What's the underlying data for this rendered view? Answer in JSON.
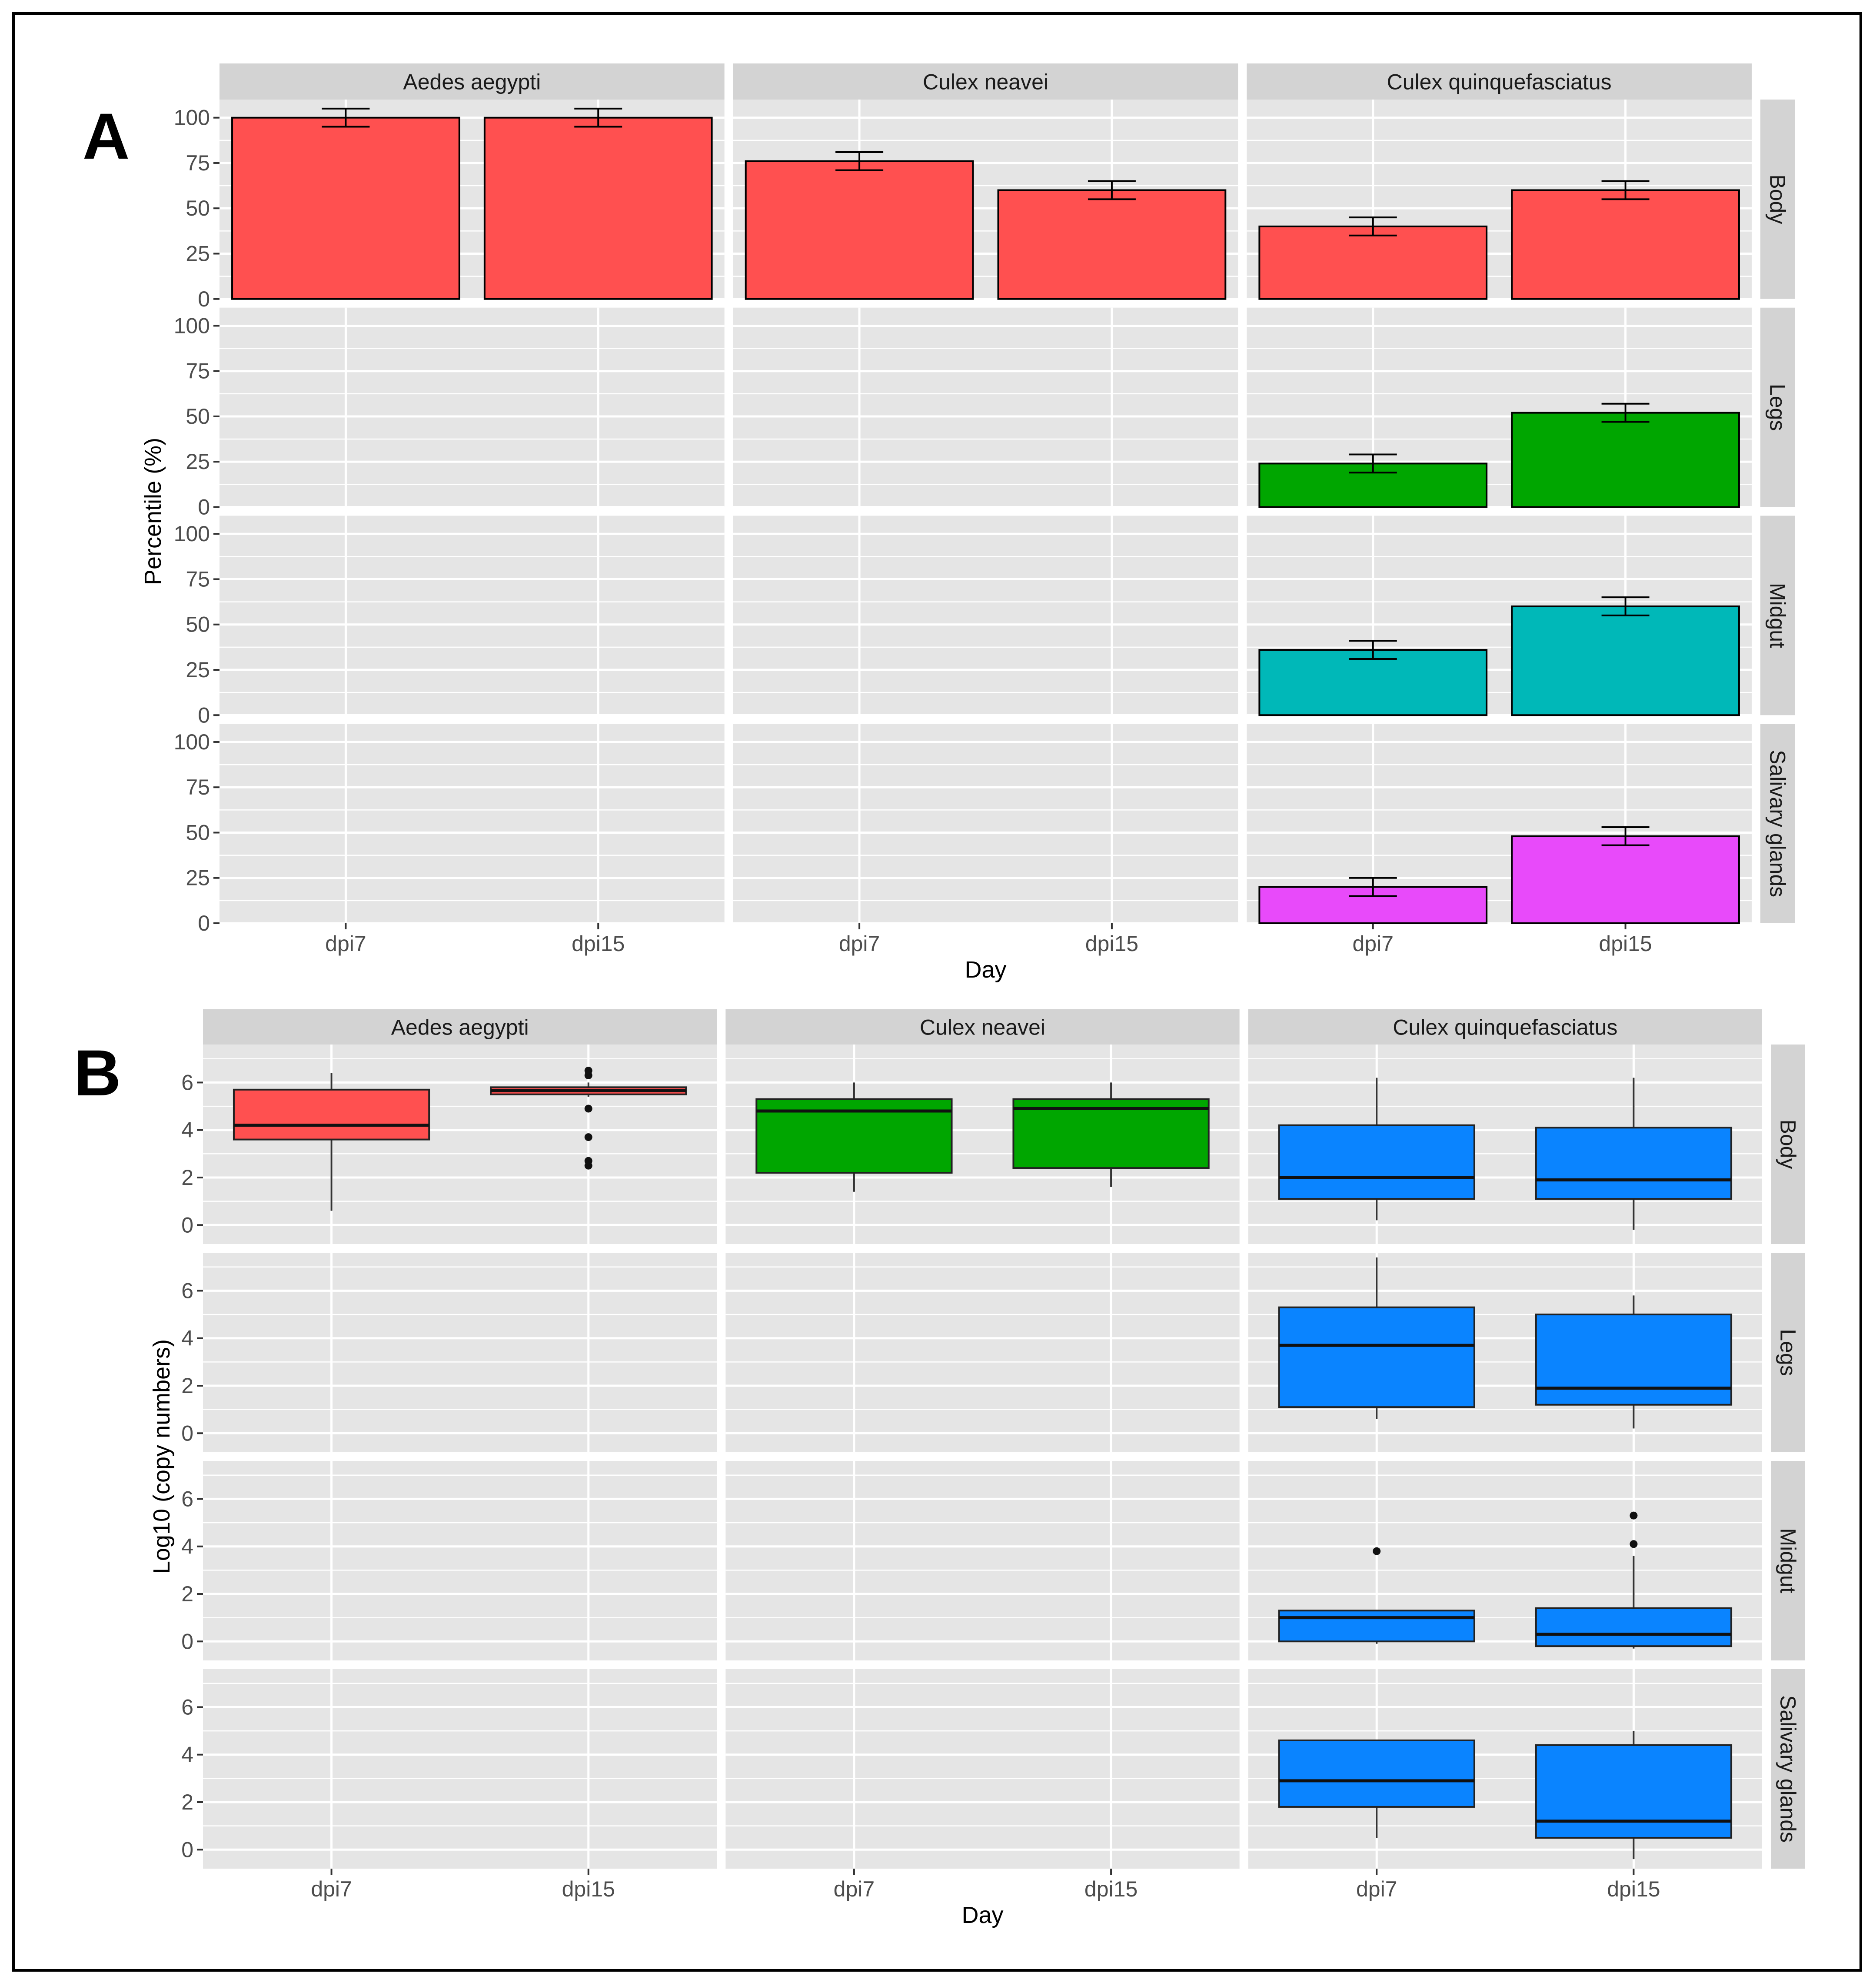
{
  "colors": {
    "panel_bg": "#E5E5E5",
    "strip_bg": "#D3D3D3",
    "grid": "#FFFFFF",
    "body_red": "#FF5050",
    "legs_green": "#00A600",
    "midgut_teal": "#00B8B8",
    "sg_magenta": "#E84AFA",
    "box_blue": "#0A84FF"
  },
  "chart_data": [
    {
      "type": "bar",
      "panel_label": "A",
      "xlabel": "Day",
      "ylabel": "Percentile (%)",
      "ylim": [
        0,
        110
      ],
      "yticks": [
        0,
        25,
        50,
        75,
        100
      ],
      "categories": [
        "dpi7",
        "dpi15"
      ],
      "species": [
        "Aedes aegypti",
        "Culex neavei",
        "Culex quinquefasciatus"
      ],
      "tissues": [
        "Body",
        "Legs",
        "Midgut",
        "Salivary glands"
      ],
      "series": [
        {
          "species": "Aedes aegypti",
          "tissue": "Body",
          "values": [
            100,
            100
          ],
          "errors": [
            5,
            5
          ]
        },
        {
          "species": "Culex neavei",
          "tissue": "Body",
          "values": [
            76,
            60
          ],
          "errors": [
            5,
            5
          ]
        },
        {
          "species": "Culex quinquefasciatus",
          "tissue": "Body",
          "values": [
            40,
            60
          ],
          "errors": [
            5,
            5
          ]
        },
        {
          "species": "Culex quinquefasciatus",
          "tissue": "Legs",
          "values": [
            24,
            52
          ],
          "errors": [
            5,
            5
          ]
        },
        {
          "species": "Culex quinquefasciatus",
          "tissue": "Midgut",
          "values": [
            36,
            60
          ],
          "errors": [
            5,
            5
          ]
        },
        {
          "species": "Culex quinquefasciatus",
          "tissue": "Salivary glands",
          "values": [
            20,
            48
          ],
          "errors": [
            5,
            5
          ]
        }
      ]
    },
    {
      "type": "box",
      "panel_label": "B",
      "xlabel": "Day",
      "ylabel": "Log10 (copy numbers)",
      "ylim": [
        -0.8,
        7.6
      ],
      "yticks": [
        0,
        2,
        4,
        6
      ],
      "categories": [
        "dpi7",
        "dpi15"
      ],
      "species": [
        "Aedes aegypti",
        "Culex neavei",
        "Culex quinquefasciatus"
      ],
      "tissues": [
        "Body",
        "Legs",
        "Midgut",
        "Salivary glands"
      ],
      "boxes": [
        {
          "species": "Aedes aegypti",
          "tissue": "Body",
          "category": "dpi7",
          "min": 0.6,
          "q1": 3.6,
          "median": 4.2,
          "q3": 5.7,
          "max": 6.4,
          "outliers": []
        },
        {
          "species": "Aedes aegypti",
          "tissue": "Body",
          "category": "dpi15",
          "min": 5.4,
          "q1": 5.5,
          "median": 5.65,
          "q3": 5.8,
          "max": 6.0,
          "outliers": [
            6.3,
            6.5,
            4.9,
            3.7,
            2.7,
            2.5
          ]
        },
        {
          "species": "Culex neavei",
          "tissue": "Body",
          "category": "dpi7",
          "min": 1.4,
          "q1": 2.2,
          "median": 4.8,
          "q3": 5.3,
          "max": 6.0,
          "outliers": []
        },
        {
          "species": "Culex neavei",
          "tissue": "Body",
          "category": "dpi15",
          "min": 1.6,
          "q1": 2.4,
          "median": 4.9,
          "q3": 5.3,
          "max": 6.0,
          "outliers": []
        },
        {
          "species": "Culex quinquefasciatus",
          "tissue": "Body",
          "category": "dpi7",
          "min": 0.2,
          "q1": 1.1,
          "median": 2.0,
          "q3": 4.2,
          "max": 6.2,
          "outliers": []
        },
        {
          "species": "Culex quinquefasciatus",
          "tissue": "Body",
          "category": "dpi15",
          "min": -0.2,
          "q1": 1.1,
          "median": 1.9,
          "q3": 4.1,
          "max": 6.2,
          "outliers": []
        },
        {
          "species": "Culex quinquefasciatus",
          "tissue": "Legs",
          "category": "dpi7",
          "min": 0.6,
          "q1": 1.1,
          "median": 3.7,
          "q3": 5.3,
          "max": 7.4,
          "outliers": []
        },
        {
          "species": "Culex quinquefasciatus",
          "tissue": "Legs",
          "category": "dpi15",
          "min": 0.2,
          "q1": 1.2,
          "median": 1.9,
          "q3": 5.0,
          "max": 5.8,
          "outliers": []
        },
        {
          "species": "Culex quinquefasciatus",
          "tissue": "Midgut",
          "category": "dpi7",
          "min": -0.1,
          "q1": 0.0,
          "median": 1.0,
          "q3": 1.3,
          "max": 1.3,
          "outliers": [
            3.8
          ]
        },
        {
          "species": "Culex quinquefasciatus",
          "tissue": "Midgut",
          "category": "dpi15",
          "min": -0.3,
          "q1": -0.2,
          "median": 0.3,
          "q3": 1.4,
          "max": 3.6,
          "outliers": [
            4.1,
            5.3
          ]
        },
        {
          "species": "Culex quinquefasciatus",
          "tissue": "Salivary glands",
          "category": "dpi7",
          "min": 0.5,
          "q1": 1.8,
          "median": 2.9,
          "q3": 4.6,
          "max": 4.6,
          "outliers": []
        },
        {
          "species": "Culex quinquefasciatus",
          "tissue": "Salivary glands",
          "category": "dpi15",
          "min": -0.4,
          "q1": 0.5,
          "median": 1.2,
          "q3": 4.4,
          "max": 5.0,
          "outliers": []
        }
      ]
    }
  ]
}
